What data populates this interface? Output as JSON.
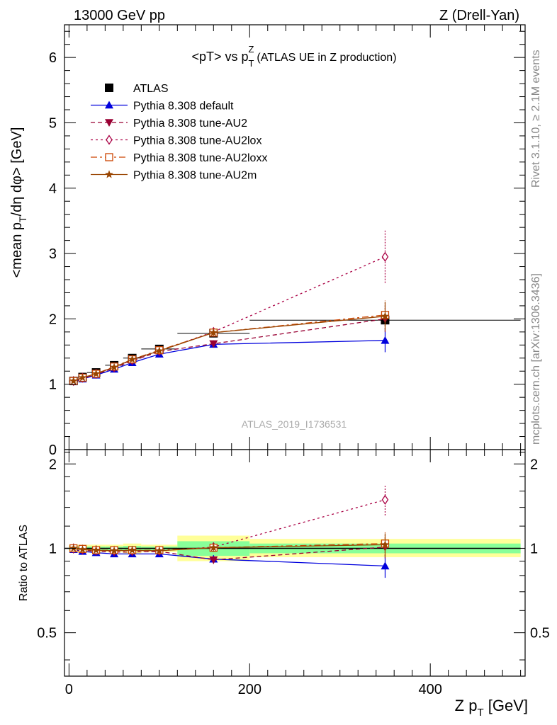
{
  "header": {
    "left_title": "13000 GeV pp",
    "right_title": "Z (Drell-Yan)"
  },
  "side_labels": {
    "rivet": "Rivet 3.1.10, ≥ 2.1M events",
    "mcplots": "mcplots.cern.ch [arXiv:1306.3436]"
  },
  "watermark": "ATLAS_2019_I1736531",
  "colors": {
    "atlas": "#000000",
    "default": "#0000dd",
    "au2": "#990033",
    "au2lox": "#aa0044",
    "au2loxx": "#cc4400",
    "au2m": "#994400",
    "band_inner": "#88ff99",
    "band_outer": "#ffff99"
  },
  "chart_data": [
    {
      "type": "line",
      "title": "<pT> vs pTZ (ATLAS UE in Z production)",
      "title_parts": {
        "main": "<pT> vs p",
        "sup": "Z",
        "sub": "T",
        "rest": "(ATLAS UE in Z production)"
      },
      "ylabel": "<mean p_T/dη dφ> [GeV]",
      "ylabel_parts": {
        "pre": "<mean p",
        "sub": "T",
        "post": "/dη dφ> [GeV]"
      },
      "xlim": [
        -5,
        505
      ],
      "ylim": [
        0,
        6.5
      ],
      "y_ticks": [
        "0",
        "1",
        "2",
        "3",
        "4",
        "5",
        "6"
      ],
      "x": [
        5,
        15,
        30,
        50,
        70,
        100,
        160,
        350
      ],
      "series": [
        {
          "name": "ATLAS",
          "key": "atlas",
          "marker": "square",
          "values": [
            1.05,
            1.11,
            1.18,
            1.29,
            1.4,
            1.54,
            1.78,
            1.98
          ],
          "xerr": [
            5,
            5,
            10,
            10,
            10,
            20,
            40,
            150
          ]
        },
        {
          "name": "Pythia 8.308 default",
          "key": "default",
          "marker": "triangle-up",
          "values": [
            1.04,
            1.08,
            1.14,
            1.23,
            1.33,
            1.46,
            1.61,
            1.67
          ],
          "yerr": [
            0.015,
            0.015,
            0.02,
            0.02,
            0.02,
            0.03,
            0.04,
            0.18
          ]
        },
        {
          "name": "Pythia 8.308 tune-AU2",
          "key": "au2",
          "marker": "triangle-down",
          "values": [
            1.04,
            1.09,
            1.15,
            1.25,
            1.36,
            1.5,
            1.62,
            2.0
          ],
          "yerr": [
            0.015,
            0.015,
            0.02,
            0.02,
            0.02,
            0.03,
            0.05,
            0.2
          ]
        },
        {
          "name": "Pythia 8.308 tune-AU2lox",
          "key": "au2lox",
          "marker": "diamond-open",
          "values": [
            1.05,
            1.1,
            1.16,
            1.26,
            1.37,
            1.51,
            1.8,
            2.95
          ],
          "yerr": [
            0.015,
            0.015,
            0.02,
            0.02,
            0.02,
            0.03,
            0.05,
            0.4
          ]
        },
        {
          "name": "Pythia 8.308 tune-AU2loxx",
          "key": "au2loxx",
          "marker": "square-open",
          "values": [
            1.05,
            1.1,
            1.16,
            1.27,
            1.38,
            1.52,
            1.79,
            2.06
          ],
          "yerr": [
            0.015,
            0.015,
            0.02,
            0.02,
            0.02,
            0.03,
            0.05,
            0.22
          ]
        },
        {
          "name": "Pythia 8.308 tune-AU2m",
          "key": "au2m",
          "marker": "star",
          "values": [
            1.05,
            1.1,
            1.16,
            1.26,
            1.38,
            1.51,
            1.79,
            2.04
          ],
          "yerr": [
            0.015,
            0.015,
            0.02,
            0.02,
            0.02,
            0.03,
            0.05,
            0.22
          ]
        }
      ]
    },
    {
      "type": "line",
      "ylabel": "Ratio to ATLAS",
      "xlabel": "Z p_T [GeV]",
      "xlabel_parts": {
        "pre": "Z p",
        "sub": "T",
        "post": " [GeV]"
      },
      "xlim": [
        -5,
        505
      ],
      "ylim": [
        0.35,
        2.25
      ],
      "y_ticks": [
        "0.5",
        "1",
        "2"
      ],
      "x_ticks": [
        "0",
        "200",
        "400"
      ],
      "reference": 1,
      "bands": [
        {
          "x": [
            0,
            10
          ],
          "inner": [
            0.985,
            1.015
          ],
          "outer": [
            0.97,
            1.03
          ]
        },
        {
          "x": [
            10,
            20
          ],
          "inner": [
            0.985,
            1.015
          ],
          "outer": [
            0.97,
            1.03
          ]
        },
        {
          "x": [
            20,
            40
          ],
          "inner": [
            0.985,
            1.015
          ],
          "outer": [
            0.97,
            1.03
          ]
        },
        {
          "x": [
            40,
            60
          ],
          "inner": [
            0.985,
            1.015
          ],
          "outer": [
            0.97,
            1.03
          ]
        },
        {
          "x": [
            60,
            80
          ],
          "inner": [
            0.98,
            1.02
          ],
          "outer": [
            0.96,
            1.04
          ]
        },
        {
          "x": [
            80,
            120
          ],
          "inner": [
            0.985,
            1.015
          ],
          "outer": [
            0.97,
            1.03
          ]
        },
        {
          "x": [
            120,
            200
          ],
          "inner": [
            0.94,
            1.06
          ],
          "outer": [
            0.9,
            1.11
          ]
        },
        {
          "x": [
            200,
            500
          ],
          "inner": [
            0.96,
            1.04
          ],
          "outer": [
            0.93,
            1.08
          ]
        }
      ],
      "x": [
        5,
        15,
        30,
        50,
        70,
        100,
        160,
        350
      ],
      "series": [
        {
          "name": "Pythia 8.308 default",
          "key": "default",
          "values": [
            0.99,
            0.975,
            0.965,
            0.955,
            0.955,
            0.955,
            0.915,
            0.865
          ],
          "yerr": [
            0.015,
            0.015,
            0.015,
            0.015,
            0.015,
            0.02,
            0.03,
            0.08
          ]
        },
        {
          "name": "Pythia 8.308 tune-AU2",
          "key": "au2",
          "values": [
            0.99,
            0.985,
            0.975,
            0.97,
            0.97,
            0.975,
            0.91,
            1.01
          ],
          "yerr": [
            0.015,
            0.015,
            0.015,
            0.015,
            0.015,
            0.02,
            0.03,
            0.09
          ]
        },
        {
          "name": "Pythia 8.308 tune-AU2lox",
          "key": "au2lox",
          "values": [
            1.0,
            0.99,
            0.985,
            0.98,
            0.98,
            0.98,
            1.01,
            1.49
          ],
          "yerr": [
            0.015,
            0.015,
            0.015,
            0.015,
            0.015,
            0.02,
            0.03,
            0.18
          ]
        },
        {
          "name": "Pythia 8.308 tune-AU2loxx",
          "key": "au2loxx",
          "values": [
            1.0,
            0.995,
            0.985,
            0.985,
            0.985,
            0.985,
            1.005,
            1.04
          ],
          "yerr": [
            0.015,
            0.015,
            0.015,
            0.015,
            0.015,
            0.02,
            0.03,
            0.1
          ]
        },
        {
          "name": "Pythia 8.308 tune-AU2m",
          "key": "au2m",
          "values": [
            1.0,
            0.99,
            0.985,
            0.98,
            0.985,
            0.98,
            1.005,
            1.03
          ],
          "yerr": [
            0.015,
            0.015,
            0.015,
            0.015,
            0.015,
            0.02,
            0.03,
            0.1
          ]
        }
      ]
    }
  ]
}
